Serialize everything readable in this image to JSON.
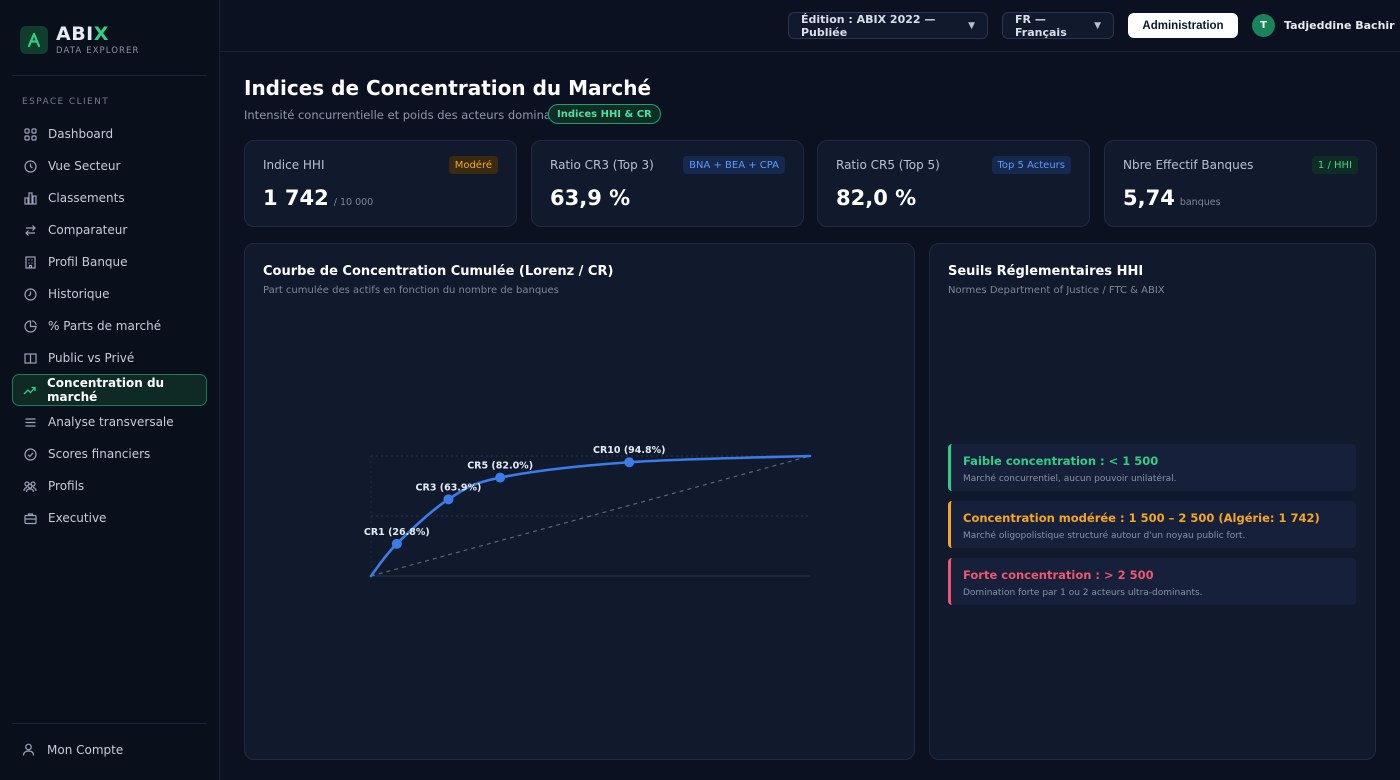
{
  "brand": {
    "name_main": "ABI",
    "name_accent": "X",
    "subtitle": "DATA EXPLORER",
    "logo_letter": "A"
  },
  "sidebar": {
    "section": "ESPACE CLIENT",
    "items": [
      {
        "label": "Dashboard",
        "icon": "grid-icon"
      },
      {
        "label": "Vue Secteur",
        "icon": "clock-icon"
      },
      {
        "label": "Classements",
        "icon": "bar-chart-icon"
      },
      {
        "label": "Comparateur",
        "icon": "swap-icon"
      },
      {
        "label": "Profil Banque",
        "icon": "building-icon"
      },
      {
        "label": "Historique",
        "icon": "history-icon"
      },
      {
        "label": "% Parts de marché",
        "icon": "pie-icon"
      },
      {
        "label": "Public vs Privé",
        "icon": "columns-icon"
      },
      {
        "label": "Concentration du marché",
        "icon": "trend-up-icon",
        "active": true
      },
      {
        "label": "Analyse transversale",
        "icon": "list-icon"
      },
      {
        "label": "Scores financiers",
        "icon": "check-circle-icon"
      },
      {
        "label": "Profils",
        "icon": "users-icon"
      },
      {
        "label": "Executive",
        "icon": "briefcase-icon"
      }
    ],
    "account": "Mon Compte"
  },
  "topbar": {
    "edition": "Édition : ABIX 2022 — Publiée",
    "language": "FR — Français",
    "admin": "Administration",
    "user_initial": "T",
    "user_name": "Tadjeddine Bachir"
  },
  "header": {
    "title": "Indices de Concentration du Marché",
    "subtitle": "Intensité concurrentielle et poids des acteurs dominants",
    "badge": "Indices HHI & CR"
  },
  "kpis": [
    {
      "label": "Indice HHI",
      "tag": "Modéré",
      "value": "1 742",
      "unit": "/ 10 000",
      "tag_color": "#f5a623"
    },
    {
      "label": "Ratio CR3 (Top 3)",
      "tag": "BNA + BEA + CPA",
      "value": "63,9 %",
      "unit": "",
      "tag_color": "#5a9bff"
    },
    {
      "label": "Ratio CR5 (Top 5)",
      "tag": "Top 5 Acteurs",
      "value": "82,0 %",
      "unit": "",
      "tag_color": "#5a9bff"
    },
    {
      "label": "Nbre Effectif Banques",
      "tag": "1 / HHI",
      "value": "5,74",
      "unit": "banques",
      "tag_color": "#3dd68c"
    }
  ],
  "chart_panel": {
    "title": "Courbe de Concentration Cumulée (Lorenz / CR)",
    "subtitle": "Part cumulée des actifs en fonction du nombre de banques"
  },
  "chart_data": {
    "type": "line",
    "x": [
      0,
      1,
      3,
      5,
      10,
      17
    ],
    "y": [
      0,
      26.8,
      63.9,
      82.0,
      94.8,
      100
    ],
    "xlim": [
      0,
      17
    ],
    "ylim": [
      0,
      100
    ],
    "labeled_points": [
      {
        "x": 1,
        "y": 26.8,
        "label": "CR1 (26.8%)"
      },
      {
        "x": 3,
        "y": 63.9,
        "label": "CR3 (63.9%)"
      },
      {
        "x": 5,
        "y": 82.0,
        "label": "CR5 (82.0%)"
      },
      {
        "x": 10,
        "y": 94.8,
        "label": "CR10 (94.8%)"
      }
    ],
    "equality_line": true,
    "line_color": "#3b7de8"
  },
  "thresholds_panel": {
    "title": "Seuils Réglementaires HHI",
    "subtitle": "Normes Department of Justice / FTC & ABIX",
    "items": [
      {
        "title": "Faible concentration : < 1 500",
        "desc": "Marché concurrentiel, aucun pouvoir unilatéral.",
        "color": "#2fcf86"
      },
      {
        "title": "Concentration modérée : 1 500 – 2 500 (Algérie: 1 742)",
        "desc": "Marché oligopolistique structuré autour d'un noyau public fort.",
        "color": "#f5a623"
      },
      {
        "title": "Forte concentration : > 2 500",
        "desc": "Domination forte par 1 ou 2 acteurs ultra-dominants.",
        "color": "#f0566f"
      }
    ]
  }
}
